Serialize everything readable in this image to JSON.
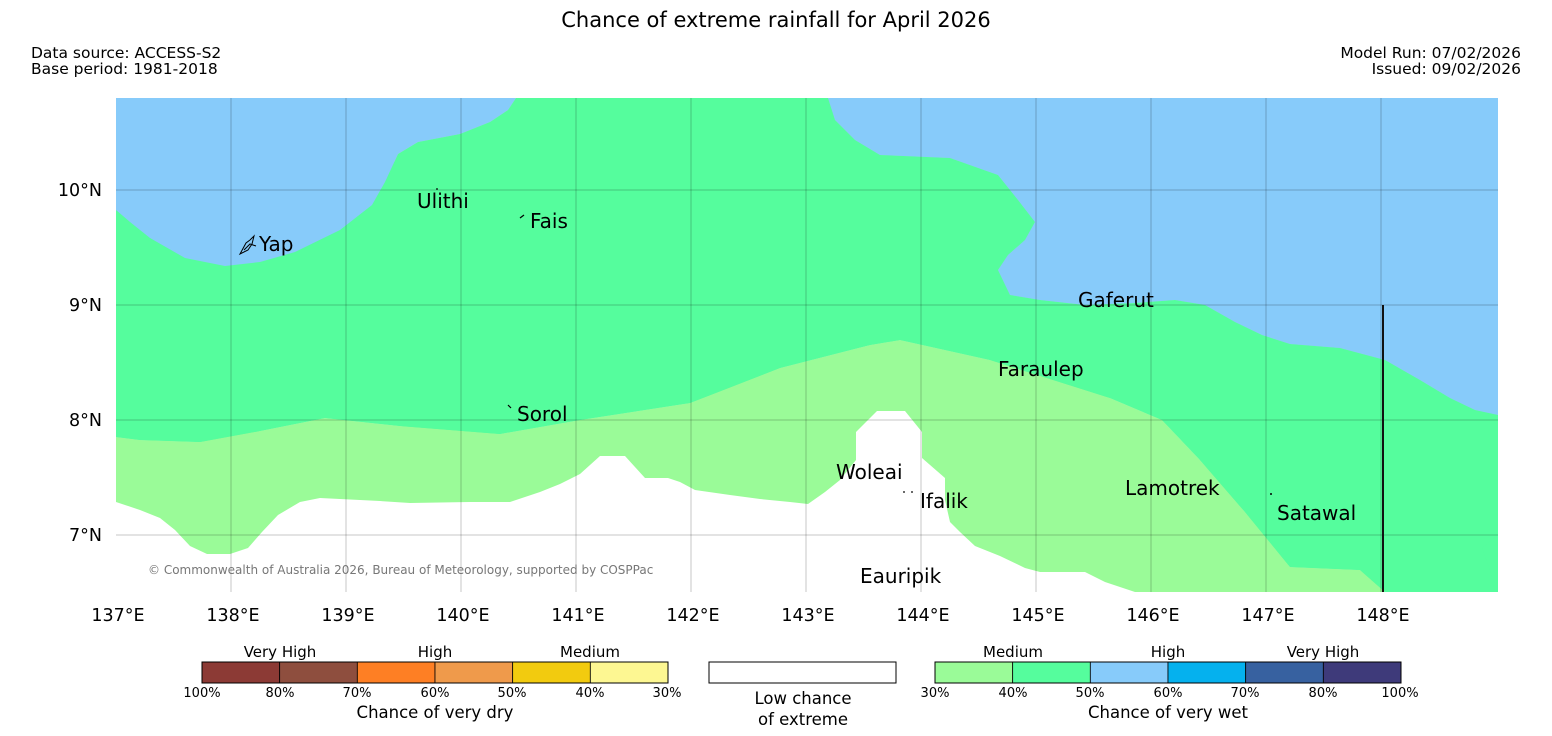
{
  "title": "Chance of extreme rainfall for April 2026",
  "header": {
    "data_source": "Data source: ACCESS-S2",
    "base_period": "Base period: 1981-2018",
    "model_run": "Model Run: 07/02/2026",
    "issued": "Issued: 09/02/2026"
  },
  "map": {
    "copyright": "© Commonwealth of Australia 2026, Bureau of Meteorology, supported by COSPPac",
    "lat_ticks": [
      "10°N",
      "9°N",
      "8°N",
      "7°N"
    ],
    "lon_ticks": [
      "137°E",
      "138°E",
      "139°E",
      "140°E",
      "141°E",
      "142°E",
      "143°E",
      "144°E",
      "145°E",
      "146°E",
      "147°E",
      "148°E"
    ],
    "places": {
      "ulithi": "Ulithi",
      "fais": "Fais",
      "yap": "Yap",
      "gaferut": "Gaferut",
      "faraulep": "Faraulep",
      "sorol": "Sorol",
      "woleai": "Woleai",
      "ifalik": "Ifalik",
      "lamotrek": "Lamotrek",
      "satawal": "Satawal",
      "eauripik": "Eauripik"
    },
    "colors": {
      "wet_medium_30_40": "#9afb98",
      "wet_medium_40_50": "#55fd9d",
      "wet_high_50_60": "#87cbfa"
    }
  },
  "legend": {
    "dry": {
      "categories": [
        "Very High",
        "High",
        "Medium"
      ],
      "tick_labels": [
        "100%",
        "80%",
        "70%",
        "60%",
        "50%",
        "40%",
        "30%"
      ],
      "colors": [
        "#8c3a35",
        "#8e4e3e",
        "#fe7f24",
        "#ef9a4b",
        "#f2cb0f",
        "#fdf792"
      ],
      "caption": "Chance of very dry"
    },
    "neutral": {
      "caption_line1": "Low chance",
      "caption_line2": "of extreme"
    },
    "wet": {
      "categories": [
        "Medium",
        "High",
        "Very High"
      ],
      "tick_labels": [
        "30%",
        "40%",
        "50%",
        "60%",
        "70%",
        "80%",
        "100%"
      ],
      "colors": [
        "#9afb98",
        "#55fd9d",
        "#87cbfa",
        "#05b1ee",
        "#3761a0",
        "#3e3a7a"
      ],
      "caption": "Chance of very wet"
    }
  }
}
